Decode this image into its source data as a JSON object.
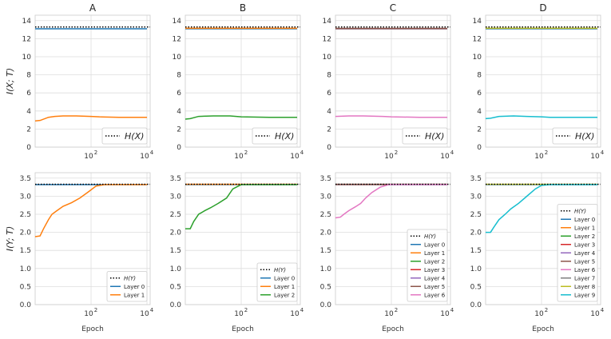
{
  "chart_data": {
    "type": "line",
    "layer_colors": [
      "#1f77b4",
      "#ff7f0e",
      "#2ca02c",
      "#d62728",
      "#9467bd",
      "#8c564b",
      "#e377c2",
      "#7f7f7f",
      "#bcbd22",
      "#17becf"
    ],
    "hx_color": "#000000",
    "grid": true,
    "panels": [
      {
        "id": "A-top",
        "title": "A",
        "ylabel": "I(X; T)",
        "xlabel": "",
        "xlim": [
          1,
          13000
        ],
        "xscale": "log",
        "xtick_labels": [
          "10",
          "2",
          "10",
          "4"
        ],
        "ylim": [
          0,
          14.6
        ],
        "yticks": [
          0,
          2,
          4,
          6,
          8,
          10,
          12,
          14
        ],
        "hline": 13.3,
        "legend_loc": "lower-right",
        "legend_size": "big",
        "legend": [
          {
            "label": "H(X)",
            "style": "dotted",
            "color": "#000000"
          }
        ],
        "series": [
          {
            "color_index": 0,
            "x": [
              1,
              10000
            ],
            "y": [
              13.1,
              13.1
            ]
          },
          {
            "color_index": 1,
            "x": [
              1,
              1.5,
              3,
              5,
              10,
              30,
              100,
              200,
              1000,
              10000
            ],
            "y": [
              2.9,
              2.95,
              3.3,
              3.4,
              3.45,
              3.45,
              3.4,
              3.35,
              3.3,
              3.3
            ]
          }
        ]
      },
      {
        "id": "B-top",
        "title": "B",
        "ylabel": "",
        "xlabel": "",
        "xlim": [
          1,
          13000
        ],
        "xscale": "log",
        "xtick_labels": [
          "10",
          "2",
          "10",
          "4"
        ],
        "ylim": [
          0,
          14.6
        ],
        "yticks": [
          0,
          2,
          4,
          6,
          8,
          10,
          12,
          14
        ],
        "hline": 13.3,
        "legend_loc": "lower-right",
        "legend_size": "big",
        "legend": [
          {
            "label": "H(X)",
            "style": "dotted",
            "color": "#000000"
          }
        ],
        "series": [
          {
            "color_index": 0,
            "x": [
              1,
              10000
            ],
            "y": [
              13.1,
              13.1
            ]
          },
          {
            "color_index": 1,
            "x": [
              1,
              10000
            ],
            "y": [
              13.15,
              13.15
            ]
          },
          {
            "color_index": 2,
            "x": [
              1,
              1.5,
              3,
              10,
              40,
              100,
              1000,
              10000
            ],
            "y": [
              3.1,
              3.15,
              3.4,
              3.45,
              3.45,
              3.35,
              3.3,
              3.3
            ]
          }
        ]
      },
      {
        "id": "C-top",
        "title": "C",
        "ylabel": "",
        "xlabel": "",
        "xlim": [
          1,
          13000
        ],
        "xscale": "log",
        "xtick_labels": [
          "10",
          "2",
          "10",
          "4"
        ],
        "ylim": [
          0,
          14.6
        ],
        "yticks": [
          0,
          2,
          4,
          6,
          8,
          10,
          12,
          14
        ],
        "hline": 13.3,
        "legend_loc": "lower-right",
        "legend_size": "big",
        "legend": [
          {
            "label": "H(X)",
            "style": "dotted",
            "color": "#000000"
          }
        ],
        "series": [
          {
            "color_index": 0,
            "x": [
              1,
              10000
            ],
            "y": [
              13.1,
              13.1
            ]
          },
          {
            "color_index": 3,
            "x": [
              1,
              10000
            ],
            "y": [
              13.12,
              13.12
            ]
          },
          {
            "color_index": 5,
            "x": [
              1,
              10000
            ],
            "y": [
              13.14,
              13.14
            ]
          },
          {
            "color_index": 6,
            "x": [
              1,
              3,
              10,
              50,
              100,
              1000,
              10000
            ],
            "y": [
              3.4,
              3.45,
              3.45,
              3.4,
              3.35,
              3.3,
              3.3
            ]
          }
        ]
      },
      {
        "id": "D-top",
        "title": "D",
        "ylabel": "",
        "xlabel": "",
        "xlim": [
          1,
          13000
        ],
        "xscale": "log",
        "xtick_labels": [
          "10",
          "2",
          "10",
          "4"
        ],
        "ylim": [
          0,
          14.6
        ],
        "yticks": [
          0,
          2,
          4,
          6,
          8,
          10,
          12,
          14
        ],
        "hline": 13.3,
        "legend_loc": "lower-right",
        "legend_size": "big",
        "legend": [
          {
            "label": "H(X)",
            "style": "dotted",
            "color": "#000000"
          }
        ],
        "series": [
          {
            "color_index": 0,
            "x": [
              1,
              10000
            ],
            "y": [
              13.1,
              13.1
            ]
          },
          {
            "color_index": 8,
            "x": [
              1,
              10000
            ],
            "y": [
              13.15,
              13.15
            ]
          },
          {
            "color_index": 9,
            "x": [
              1,
              1.5,
              3,
              10,
              30,
              100,
              200,
              1000,
              10000
            ],
            "y": [
              3.15,
              3.2,
              3.4,
              3.45,
              3.4,
              3.35,
              3.3,
              3.3,
              3.3
            ]
          }
        ]
      },
      {
        "id": "A-bottom",
        "title": "",
        "ylabel": "I(Y; T)",
        "xlabel": "Epoch",
        "xlim": [
          1,
          13000
        ],
        "xscale": "log",
        "xtick_labels": [
          "10",
          "2",
          "10",
          "4"
        ],
        "ylim": [
          0,
          3.65
        ],
        "yticks": [
          0,
          0.5,
          1.0,
          1.5,
          2.0,
          2.5,
          3.0,
          3.5
        ],
        "hline": 3.33,
        "legend_loc": "lower-right",
        "legend_size": "small",
        "legend": [
          {
            "label": "H(Y)",
            "style": "dotted",
            "color": "#000000"
          },
          {
            "label": "Layer 0",
            "style": "solid",
            "color_index": 0
          },
          {
            "label": "Layer 1",
            "style": "solid",
            "color_index": 1
          }
        ],
        "series": [
          {
            "color_index": 0,
            "x": [
              1,
              10000
            ],
            "y": [
              3.32,
              3.32
            ]
          },
          {
            "color_index": 1,
            "x": [
              1,
              1.5,
              2,
              3,
              4,
              6,
              10,
              20,
              40,
              80,
              150,
              300,
              1000,
              10000
            ],
            "y": [
              1.88,
              1.9,
              2.1,
              2.35,
              2.5,
              2.6,
              2.72,
              2.82,
              2.95,
              3.12,
              3.28,
              3.32,
              3.32,
              3.32
            ]
          }
        ]
      },
      {
        "id": "B-bottom",
        "title": "",
        "ylabel": "",
        "xlabel": "Epoch",
        "xlim": [
          1,
          13000
        ],
        "xscale": "log",
        "xtick_labels": [
          "10",
          "2",
          "10",
          "4"
        ],
        "ylim": [
          0,
          3.65
        ],
        "yticks": [
          0,
          0.5,
          1.0,
          1.5,
          2.0,
          2.5,
          3.0,
          3.5
        ],
        "hline": 3.33,
        "legend_loc": "lower-right",
        "legend_size": "small",
        "legend": [
          {
            "label": "H(Y)",
            "style": "dotted",
            "color": "#000000"
          },
          {
            "label": "Layer 0",
            "style": "solid",
            "color_index": 0
          },
          {
            "label": "Layer 1",
            "style": "solid",
            "color_index": 1
          },
          {
            "label": "Layer 2",
            "style": "solid",
            "color_index": 2
          }
        ],
        "series": [
          {
            "color_index": 0,
            "x": [
              1,
              10000
            ],
            "y": [
              3.32,
              3.32
            ]
          },
          {
            "color_index": 1,
            "x": [
              1,
              10000
            ],
            "y": [
              3.33,
              3.33
            ]
          },
          {
            "color_index": 2,
            "x": [
              1,
              1.5,
              2,
              3,
              5,
              8,
              15,
              30,
              50,
              100,
              1000,
              10000
            ],
            "y": [
              2.1,
              2.1,
              2.3,
              2.5,
              2.6,
              2.68,
              2.8,
              2.95,
              3.2,
              3.32,
              3.32,
              3.32
            ]
          }
        ]
      },
      {
        "id": "C-bottom",
        "title": "",
        "ylabel": "",
        "xlabel": "Epoch",
        "xlim": [
          1,
          13000
        ],
        "xscale": "log",
        "xtick_labels": [
          "10",
          "2",
          "10",
          "4"
        ],
        "ylim": [
          0,
          3.65
        ],
        "yticks": [
          0,
          0.5,
          1.0,
          1.5,
          2.0,
          2.5,
          3.0,
          3.5
        ],
        "hline": 3.33,
        "legend_loc": "lower-right",
        "legend_size": "small",
        "legend": [
          {
            "label": "H(Y)",
            "style": "dotted",
            "color": "#000000"
          },
          {
            "label": "Layer 0",
            "style": "solid",
            "color_index": 0
          },
          {
            "label": "Layer 1",
            "style": "solid",
            "color_index": 1
          },
          {
            "label": "Layer 2",
            "style": "solid",
            "color_index": 2
          },
          {
            "label": "Layer 3",
            "style": "solid",
            "color_index": 3
          },
          {
            "label": "Layer 4",
            "style": "solid",
            "color_index": 4
          },
          {
            "label": "Layer 5",
            "style": "solid",
            "color_index": 5
          },
          {
            "label": "Layer 6",
            "style": "solid",
            "color_index": 6
          }
        ],
        "series": [
          {
            "color_index": 0,
            "x": [
              1,
              10000
            ],
            "y": [
              3.32,
              3.32
            ]
          },
          {
            "color_index": 3,
            "x": [
              1,
              10000
            ],
            "y": [
              3.325,
              3.325
            ]
          },
          {
            "color_index": 5,
            "x": [
              1,
              10000
            ],
            "y": [
              3.33,
              3.33
            ]
          },
          {
            "color_index": 6,
            "x": [
              1,
              1.5,
              2,
              3,
              5,
              8,
              12,
              20,
              40,
              80,
              1000,
              10000
            ],
            "y": [
              2.4,
              2.42,
              2.5,
              2.6,
              2.7,
              2.8,
              2.95,
              3.1,
              3.25,
              3.32,
              3.32,
              3.32
            ]
          }
        ]
      },
      {
        "id": "D-bottom",
        "title": "",
        "ylabel": "",
        "xlabel": "Epoch",
        "xlim": [
          1,
          13000
        ],
        "xscale": "log",
        "xtick_labels": [
          "10",
          "2",
          "10",
          "4"
        ],
        "ylim": [
          0,
          3.65
        ],
        "yticks": [
          0,
          0.5,
          1.0,
          1.5,
          2.0,
          2.5,
          3.0,
          3.5
        ],
        "hline": 3.33,
        "legend_loc": "lower-right",
        "legend_size": "small",
        "legend": [
          {
            "label": "H(Y)",
            "style": "dotted",
            "color": "#000000"
          },
          {
            "label": "Layer 0",
            "style": "solid",
            "color_index": 0
          },
          {
            "label": "Layer 1",
            "style": "solid",
            "color_index": 1
          },
          {
            "label": "Layer 2",
            "style": "solid",
            "color_index": 2
          },
          {
            "label": "Layer 3",
            "style": "solid",
            "color_index": 3
          },
          {
            "label": "Layer 4",
            "style": "solid",
            "color_index": 4
          },
          {
            "label": "Layer 5",
            "style": "solid",
            "color_index": 5
          },
          {
            "label": "Layer 6",
            "style": "solid",
            "color_index": 6
          },
          {
            "label": "Layer 7",
            "style": "solid",
            "color_index": 7
          },
          {
            "label": "Layer 8",
            "style": "solid",
            "color_index": 8
          },
          {
            "label": "Layer 9",
            "style": "solid",
            "color_index": 9
          }
        ],
        "series": [
          {
            "color_index": 0,
            "x": [
              1,
              10000
            ],
            "y": [
              3.32,
              3.32
            ]
          },
          {
            "color_index": 8,
            "x": [
              1,
              10000
            ],
            "y": [
              3.33,
              3.33
            ]
          },
          {
            "color_index": 9,
            "x": [
              1,
              1.5,
              2,
              3,
              5,
              8,
              15,
              30,
              60,
              100,
              200,
              1000,
              10000
            ],
            "y": [
              2.0,
              2.0,
              2.15,
              2.35,
              2.5,
              2.65,
              2.8,
              3.0,
              3.2,
              3.3,
              3.32,
              3.32,
              3.32
            ]
          }
        ]
      }
    ]
  }
}
